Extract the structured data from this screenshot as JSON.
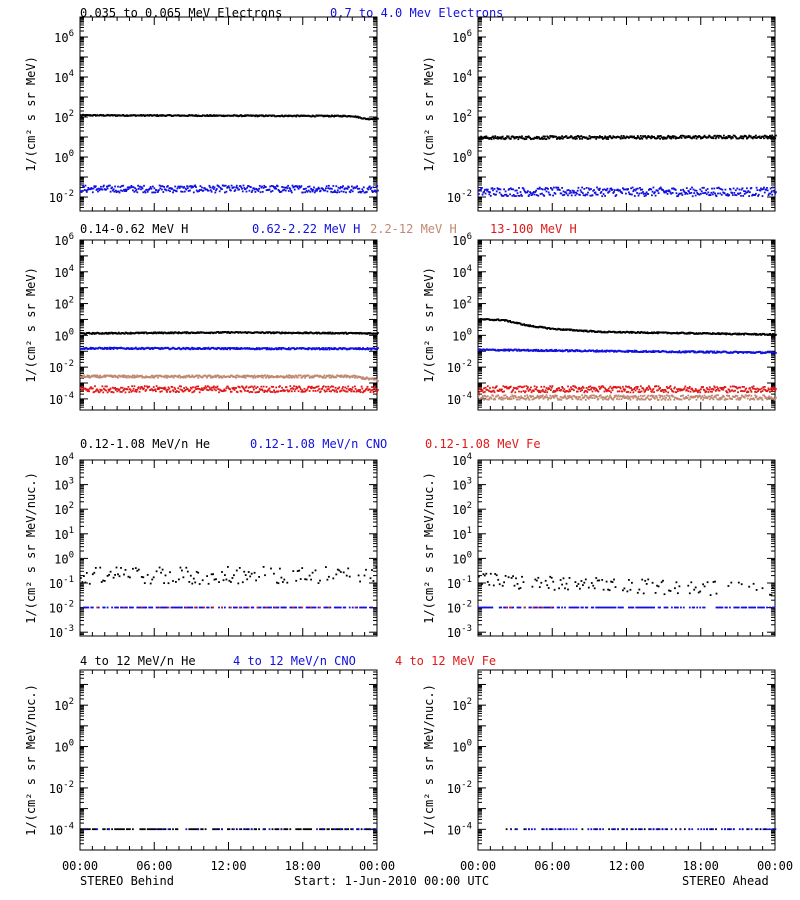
{
  "colors": {
    "black": "#000000",
    "blue": "#1010e0",
    "tan": "#c08870",
    "red": "#e01818"
  },
  "rows": [
    {
      "titles": [
        {
          "text": "0.035 to 0.065 MeV Electrons",
          "color": "#000000"
        },
        {
          "text": "0.7 to 4.0 Mev Electrons",
          "color": "#1010e0"
        }
      ]
    },
    {
      "titles": [
        {
          "text": "0.14-0.62 MeV H",
          "color": "#000000"
        },
        {
          "text": "0.62-2.22 MeV H",
          "color": "#1010e0"
        },
        {
          "text": "2.2-12 MeV H",
          "color": "#c08870"
        },
        {
          "text": "13-100 MeV H",
          "color": "#e01818"
        }
      ]
    },
    {
      "titles": [
        {
          "text": "0.12-1.08 MeV/n He",
          "color": "#000000"
        },
        {
          "text": "0.12-1.08 MeV/n CNO",
          "color": "#1010e0"
        },
        {
          "text": "0.12-1.08 MeV Fe",
          "color": "#e01818"
        }
      ]
    },
    {
      "titles": [
        {
          "text": "4 to 12 MeV/n He",
          "color": "#000000"
        },
        {
          "text": "4 to 12 MeV/n CNO",
          "color": "#1010e0"
        },
        {
          "text": "4 to 12 MeV Fe",
          "color": "#e01818"
        }
      ]
    }
  ],
  "footer": {
    "left": "STEREO Behind",
    "center": "Start:  1-Jun-2010 00:00 UTC",
    "right": "STEREO Ahead"
  },
  "chart_data": [
    {
      "id": "electrons-behind",
      "type": "scatter",
      "scale": "log",
      "ylabel": "1/(cm² s sr MeV)",
      "x_ticks": [
        "00:00",
        "06:00",
        "12:00",
        "18:00",
        "00:00"
      ],
      "y_ticks": [
        {
          "value": 0.01,
          "base": "10",
          "exp": "-2"
        },
        {
          "value": 1,
          "base": "10",
          "exp": "0"
        },
        {
          "value": 100,
          "base": "10",
          "exp": "2"
        },
        {
          "value": 10000,
          "base": "10",
          "exp": "4"
        },
        {
          "value": 1000000,
          "base": "10",
          "exp": "6"
        }
      ],
      "ylim": [
        0.002,
        10000000
      ],
      "x_range_hours": [
        0,
        24
      ],
      "series": [
        {
          "color": "#000000",
          "points": [
            [
              0,
              120
            ],
            [
              12,
              115
            ],
            [
              22,
              110
            ],
            [
              23,
              80
            ],
            [
              24,
              78
            ]
          ],
          "scatter": 0.03
        },
        {
          "color": "#1010e0",
          "points": [
            [
              0,
              0.025
            ],
            [
              24,
              0.025
            ]
          ],
          "scatter": 0.18
        }
      ]
    },
    {
      "id": "electrons-ahead",
      "type": "scatter",
      "scale": "log",
      "ylabel": "1/(cm² s sr MeV)",
      "x_ticks": [
        "00:00",
        "06:00",
        "12:00",
        "18:00",
        "00:00"
      ],
      "y_ticks": [
        {
          "value": 0.01,
          "base": "10",
          "exp": "-2"
        },
        {
          "value": 1,
          "base": "10",
          "exp": "0"
        },
        {
          "value": 100,
          "base": "10",
          "exp": "2"
        },
        {
          "value": 10000,
          "base": "10",
          "exp": "4"
        },
        {
          "value": 1000000,
          "base": "10",
          "exp": "6"
        }
      ],
      "ylim": [
        0.002,
        10000000
      ],
      "x_range_hours": [
        0,
        24
      ],
      "series": [
        {
          "color": "#000000",
          "points": [
            [
              0,
              9
            ],
            [
              24,
              10
            ]
          ],
          "scatter": 0.08
        },
        {
          "color": "#1010e0",
          "points": [
            [
              0,
              0.018
            ],
            [
              24,
              0.018
            ]
          ],
          "scatter": 0.22
        }
      ]
    },
    {
      "id": "protons-behind",
      "type": "scatter",
      "scale": "log",
      "ylabel": "1/(cm² s sr MeV)",
      "x_ticks": [
        "00:00",
        "06:00",
        "12:00",
        "18:00",
        "00:00"
      ],
      "y_ticks": [
        {
          "value": 0.0001,
          "base": "10",
          "exp": "-4"
        },
        {
          "value": 0.01,
          "base": "10",
          "exp": "-2"
        },
        {
          "value": 1,
          "base": "10",
          "exp": "0"
        },
        {
          "value": 100,
          "base": "10",
          "exp": "2"
        },
        {
          "value": 10000,
          "base": "10",
          "exp": "4"
        },
        {
          "value": 1000000,
          "base": "10",
          "exp": "6"
        }
      ],
      "ylim": [
        2e-05,
        1000000
      ],
      "x_range_hours": [
        0,
        24
      ],
      "series": [
        {
          "color": "#000000",
          "points": [
            [
              0,
              1.3
            ],
            [
              12,
              1.5
            ],
            [
              24,
              1.3
            ]
          ],
          "scatter": 0.04
        },
        {
          "color": "#1010e0",
          "points": [
            [
              0,
              0.15
            ],
            [
              24,
              0.14
            ]
          ],
          "scatter": 0.05
        },
        {
          "color": "#c08870",
          "points": [
            [
              0,
              0.0025
            ],
            [
              22,
              0.0025
            ],
            [
              24,
              0.0015
            ]
          ],
          "scatter": 0.08
        },
        {
          "color": "#e01818",
          "points": [
            [
              0,
              0.0004
            ],
            [
              24,
              0.0004
            ]
          ],
          "scatter": 0.2
        }
      ]
    },
    {
      "id": "protons-ahead",
      "type": "scatter",
      "scale": "log",
      "ylabel": "1/(cm² s sr MeV)",
      "x_ticks": [
        "00:00",
        "06:00",
        "12:00",
        "18:00",
        "00:00"
      ],
      "y_ticks": [
        {
          "value": 0.0001,
          "base": "10",
          "exp": "-4"
        },
        {
          "value": 0.01,
          "base": "10",
          "exp": "-2"
        },
        {
          "value": 1,
          "base": "10",
          "exp": "0"
        },
        {
          "value": 100,
          "base": "10",
          "exp": "2"
        },
        {
          "value": 10000,
          "base": "10",
          "exp": "4"
        },
        {
          "value": 1000000,
          "base": "10",
          "exp": "6"
        }
      ],
      "ylim": [
        2e-05,
        1000000
      ],
      "x_range_hours": [
        0,
        24
      ],
      "series": [
        {
          "color": "#000000",
          "points": [
            [
              0,
              10
            ],
            [
              2,
              9
            ],
            [
              4,
              4
            ],
            [
              6,
              2.5
            ],
            [
              10,
              1.6
            ],
            [
              18,
              1.3
            ],
            [
              24,
              1.1
            ]
          ],
          "scatter": 0.04
        },
        {
          "color": "#1010e0",
          "points": [
            [
              0,
              0.12
            ],
            [
              24,
              0.08
            ]
          ],
          "scatter": 0.05
        },
        {
          "color": "#e01818",
          "points": [
            [
              0,
              0.0004
            ],
            [
              24,
              0.0004
            ]
          ],
          "scatter": 0.2
        },
        {
          "color": "#c08870",
          "points": [
            [
              0,
              0.00012
            ],
            [
              24,
              0.00012
            ]
          ],
          "scatter": 0.15
        }
      ]
    },
    {
      "id": "ions-low-behind",
      "type": "scatter",
      "scale": "log",
      "ylabel": "1/(cm² s sr MeV/nuc.)",
      "x_ticks": [
        "00:00",
        "06:00",
        "12:00",
        "18:00",
        "00:00"
      ],
      "y_ticks": [
        {
          "value": 0.001,
          "base": "10",
          "exp": "-3"
        },
        {
          "value": 0.01,
          "base": "10",
          "exp": "-2"
        },
        {
          "value": 0.1,
          "base": "10",
          "exp": "-1"
        },
        {
          "value": 1,
          "base": "10",
          "exp": "0"
        },
        {
          "value": 10,
          "base": "10",
          "exp": "1"
        },
        {
          "value": 100,
          "base": "10",
          "exp": "2"
        },
        {
          "value": 1000,
          "base": "10",
          "exp": "3"
        },
        {
          "value": 10000,
          "base": "10",
          "exp": "4"
        }
      ],
      "ylim": [
        0.0007,
        10000
      ],
      "x_range_hours": [
        0,
        24
      ],
      "series": [
        {
          "color": "#000000",
          "points": [
            [
              0,
              0.2
            ],
            [
              24,
              0.2
            ]
          ],
          "scatter": 0.35,
          "sparse": true
        },
        {
          "color": "#1010e0",
          "points": [
            [
              0,
              0.01
            ],
            [
              24,
              0.01
            ]
          ],
          "scatter": 0.0,
          "sparse": true
        },
        {
          "color": "#e01818",
          "points": [
            [
              0,
              0.01
            ],
            [
              24,
              0.01
            ]
          ],
          "scatter": 0.0,
          "sparse": true,
          "every": 6
        }
      ]
    },
    {
      "id": "ions-low-ahead",
      "type": "scatter",
      "scale": "log",
      "ylabel": "1/(cm² s sr MeV/nuc.)",
      "x_ticks": [
        "00:00",
        "06:00",
        "12:00",
        "18:00",
        "00:00"
      ],
      "y_ticks": [
        {
          "value": 0.001,
          "base": "10",
          "exp": "-3"
        },
        {
          "value": 0.01,
          "base": "10",
          "exp": "-2"
        },
        {
          "value": 0.1,
          "base": "10",
          "exp": "-1"
        },
        {
          "value": 1,
          "base": "10",
          "exp": "0"
        },
        {
          "value": 10,
          "base": "10",
          "exp": "1"
        },
        {
          "value": 100,
          "base": "10",
          "exp": "2"
        },
        {
          "value": 1000,
          "base": "10",
          "exp": "3"
        },
        {
          "value": 10000,
          "base": "10",
          "exp": "4"
        }
      ],
      "ylim": [
        0.0007,
        10000
      ],
      "x_range_hours": [
        0,
        24
      ],
      "series": [
        {
          "color": "#000000",
          "points": [
            [
              0,
              0.15
            ],
            [
              3,
              0.1
            ],
            [
              24,
              0.05
            ]
          ],
          "scatter": 0.3,
          "sparse": true
        },
        {
          "color": "#1010e0",
          "points": [
            [
              0,
              0.01
            ],
            [
              24,
              0.01
            ]
          ],
          "scatter": 0.0,
          "sparse": true
        },
        {
          "color": "#e01818",
          "points": [
            [
              2,
              0.01
            ],
            [
              6,
              0.01
            ]
          ],
          "scatter": 0.0,
          "sparse": true,
          "every": 3
        }
      ]
    },
    {
      "id": "ions-high-behind",
      "type": "scatter",
      "scale": "log",
      "ylabel": "1/(cm² s sr MeV/nuc.)",
      "x_ticks": [
        "00:00",
        "06:00",
        "12:00",
        "18:00",
        "00:00"
      ],
      "y_ticks": [
        {
          "value": 0.0001,
          "base": "10",
          "exp": "-4"
        },
        {
          "value": 0.01,
          "base": "10",
          "exp": "-2"
        },
        {
          "value": 1,
          "base": "10",
          "exp": "0"
        },
        {
          "value": 100,
          "base": "10",
          "exp": "2"
        }
      ],
      "ylim": [
        1e-05,
        5000
      ],
      "x_range_hours": [
        0,
        24
      ],
      "series": [
        {
          "color": "#000000",
          "points": [
            [
              0,
              0.0001
            ],
            [
              24,
              0.0001
            ]
          ],
          "scatter": 0.0,
          "sparse": true
        },
        {
          "color": "#1010e0",
          "points": [
            [
              0,
              0.0001
            ],
            [
              24,
              0.0001
            ]
          ],
          "scatter": 0.0,
          "sparse": true,
          "every": 4
        }
      ]
    },
    {
      "id": "ions-high-ahead",
      "type": "scatter",
      "scale": "log",
      "ylabel": "1/(cm² s sr MeV/nuc.)",
      "x_ticks": [
        "00:00",
        "06:00",
        "12:00",
        "18:00",
        "00:00"
      ],
      "y_ticks": [
        {
          "value": 0.0001,
          "base": "10",
          "exp": "-4"
        },
        {
          "value": 0.01,
          "base": "10",
          "exp": "-2"
        },
        {
          "value": 1,
          "base": "10",
          "exp": "0"
        },
        {
          "value": 100,
          "base": "10",
          "exp": "2"
        }
      ],
      "ylim": [
        1e-05,
        5000
      ],
      "x_range_hours": [
        0,
        24
      ],
      "series": [
        {
          "color": "#000000",
          "points": [
            [
              2,
              0.0001
            ],
            [
              24,
              0.0001
            ]
          ],
          "scatter": 0.0,
          "sparse": true,
          "every": 3
        },
        {
          "color": "#1010e0",
          "points": [
            [
              2,
              0.0001
            ],
            [
              24,
              0.0001
            ]
          ],
          "scatter": 0.0,
          "sparse": true,
          "every": 2
        }
      ]
    }
  ]
}
